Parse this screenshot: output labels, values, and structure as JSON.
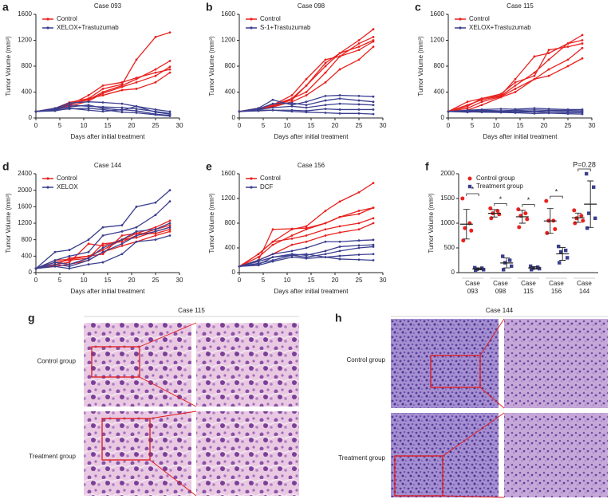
{
  "chart_data": [
    {
      "type": "line",
      "panel": "a",
      "title": "Case 093",
      "xlabel": "Days after initial treatment",
      "ylabel": "Tumor Volume (mm³)",
      "x": [
        0,
        4,
        7,
        11,
        14,
        18,
        21,
        25,
        28
      ],
      "xlim": [
        0,
        30
      ],
      "xticks": [
        0,
        5,
        10,
        15,
        20,
        25,
        30
      ],
      "ylim": [
        0,
        1600
      ],
      "yticks": [
        0,
        400,
        800,
        1200,
        1600
      ],
      "series": [
        {
          "name": "Control",
          "color": "#e8221f",
          "lines": [
            [
              100,
              150,
              200,
              300,
              450,
              520,
              900,
              1250,
              1320
            ],
            [
              100,
              140,
              220,
              280,
              400,
              500,
              600,
              750,
              880
            ],
            [
              100,
              130,
              180,
              260,
              380,
              480,
              550,
              650,
              790
            ],
            [
              100,
              120,
              200,
              350,
              500,
              550,
              620,
              700,
              750
            ],
            [
              100,
              150,
              240,
              300,
              350,
              430,
              450,
              550,
              700
            ]
          ]
        },
        {
          "name": "XELOX+Trastuzumab",
          "color": "#3b3f8f",
          "lines": [
            [
              100,
              150,
              230,
              250,
              240,
              220,
              180,
              130,
              100
            ],
            [
              100,
              140,
              200,
              180,
              170,
              160,
              140,
              100,
              70
            ],
            [
              100,
              130,
              170,
              200,
              150,
              120,
              180,
              90,
              60
            ],
            [
              100,
              110,
              150,
              120,
              100,
              130,
              110,
              60,
              40
            ],
            [
              100,
              120,
              140,
              150,
              130,
              90,
              80,
              50,
              30
            ]
          ]
        }
      ]
    },
    {
      "type": "line",
      "panel": "b",
      "title": "Case 098",
      "xlabel": "Days after initial treatment",
      "ylabel": "Tumor Volume (mm³)",
      "x": [
        0,
        4,
        7,
        11,
        14,
        18,
        21,
        25,
        28
      ],
      "xlim": [
        0,
        30
      ],
      "xticks": [
        0,
        5,
        10,
        15,
        20,
        25,
        30
      ],
      "ylim": [
        0,
        1600
      ],
      "yticks": [
        0,
        400,
        800,
        1200,
        1600
      ],
      "series": [
        {
          "name": "Control",
          "color": "#e8221f",
          "lines": [
            [
              100,
              150,
              180,
              300,
              500,
              850,
              1000,
              1200,
              1370
            ],
            [
              100,
              140,
              200,
              350,
              600,
              900,
              950,
              1150,
              1250
            ],
            [
              100,
              130,
              180,
              280,
              500,
              800,
              1000,
              1100,
              1200
            ],
            [
              100,
              120,
              200,
              300,
              400,
              700,
              950,
              1050,
              1180
            ],
            [
              100,
              150,
              170,
              250,
              350,
              550,
              750,
              900,
              1100
            ]
          ]
        },
        {
          "name": "S-1+Trastuzumab",
          "color": "#3b3f8f",
          "lines": [
            [
              100,
              150,
              280,
              200,
              250,
              340,
              350,
              340,
              330
            ],
            [
              100,
              140,
              220,
              230,
              200,
              270,
              300,
              270,
              250
            ],
            [
              100,
              130,
              160,
              180,
              160,
              200,
              220,
              210,
              200
            ],
            [
              100,
              110,
              120,
              120,
              110,
              140,
              130,
              130,
              130
            ],
            [
              100,
              120,
              120,
              100,
              90,
              80,
              70,
              70,
              60
            ]
          ]
        }
      ]
    },
    {
      "type": "line",
      "panel": "c",
      "title": "Case 115",
      "xlabel": "Days after initial treatment",
      "ylabel": "Tumor Volume (mm³)",
      "x": [
        0,
        4,
        7,
        11,
        14,
        18,
        21,
        25,
        28
      ],
      "xlim": [
        0,
        30
      ],
      "xticks": [
        0,
        5,
        10,
        15,
        20,
        25,
        30
      ],
      "ylim": [
        0,
        1600
      ],
      "yticks": [
        0,
        400,
        800,
        1200,
        1600
      ],
      "series": [
        {
          "name": "Control",
          "color": "#e8221f",
          "lines": [
            [
              100,
              250,
              300,
              350,
              600,
              950,
              1000,
              1150,
              1280
            ],
            [
              100,
              200,
              280,
              340,
              500,
              700,
              900,
              1150,
              1200
            ],
            [
              100,
              180,
              300,
              370,
              550,
              650,
              1050,
              1100,
              1150
            ],
            [
              100,
              150,
              250,
              330,
              450,
              600,
              750,
              900,
              1080
            ],
            [
              100,
              120,
              200,
              320,
              400,
              600,
              650,
              800,
              920
            ]
          ]
        },
        {
          "name": "XELOX+Trastuzumab",
          "color": "#3b3f8f",
          "lines": [
            [
              100,
              120,
              130,
              140,
              135,
              150,
              140,
              130,
              130
            ],
            [
              100,
              110,
              120,
              110,
              120,
              125,
              120,
              115,
              110
            ],
            [
              100,
              100,
              110,
              100,
              110,
              100,
              110,
              100,
              100
            ],
            [
              100,
              90,
              100,
              95,
              90,
              95,
              85,
              80,
              80
            ],
            [
              100,
              95,
              90,
              85,
              80,
              70,
              75,
              65,
              60
            ]
          ]
        }
      ]
    },
    {
      "type": "line",
      "panel": "d",
      "title": "Case 144",
      "xlabel": "Days after initial treatment",
      "ylabel": "Tumor Volume (mm³)",
      "x": [
        0,
        4,
        7,
        11,
        14,
        18,
        21,
        25,
        28
      ],
      "xlim": [
        0,
        30
      ],
      "xticks": [
        0,
        5,
        10,
        15,
        20,
        25,
        30
      ],
      "ylim": [
        0,
        2400
      ],
      "yticks": [
        0,
        400,
        800,
        1200,
        1600,
        2000,
        2400
      ],
      "series": [
        {
          "name": "Control",
          "color": "#e8221f",
          "lines": [
            [
              100,
              300,
              320,
              400,
              450,
              900,
              950,
              1100,
              1260
            ],
            [
              100,
              250,
              300,
              350,
              700,
              750,
              900,
              1050,
              1150
            ],
            [
              100,
              200,
              250,
              700,
              650,
              800,
              850,
              1000,
              1100
            ],
            [
              100,
              180,
              350,
              400,
              550,
              800,
              950,
              950,
              1050
            ],
            [
              100,
              150,
              200,
              300,
              500,
              650,
              750,
              900,
              1000
            ]
          ]
        },
        {
          "name": "XELOX",
          "color": "#3b3f8f",
          "lines": [
            [
              100,
              500,
              550,
              800,
              1100,
              1150,
              1600,
              1700,
              2000
            ],
            [
              100,
              300,
              400,
              500,
              900,
              1000,
              1100,
              1400,
              1730
            ],
            [
              100,
              250,
              200,
              350,
              600,
              800,
              1000,
              1050,
              1200
            ],
            [
              100,
              200,
              150,
              300,
              500,
              700,
              900,
              1000,
              1100
            ],
            [
              100,
              150,
              100,
              200,
              250,
              450,
              750,
              800,
              900
            ]
          ]
        }
      ]
    },
    {
      "type": "line",
      "panel": "e",
      "title": "Case 156",
      "xlabel": "Days after initial treatment",
      "ylabel": "Tumor Volume (mm³)",
      "x": [
        0,
        4,
        7,
        11,
        14,
        18,
        21,
        25,
        28
      ],
      "xlim": [
        0,
        30
      ],
      "xticks": [
        0,
        5,
        10,
        15,
        20,
        25,
        30
      ],
      "ylim": [
        0,
        1600
      ],
      "yticks": [
        0,
        400,
        800,
        1200,
        1600
      ],
      "series": [
        {
          "name": "Control",
          "color": "#e8221f",
          "lines": [
            [
              100,
              300,
              500,
              700,
              750,
              1000,
              1150,
              1300,
              1450
            ],
            [
              100,
              250,
              450,
              600,
              700,
              800,
              900,
              950,
              1050
            ],
            [
              100,
              200,
              700,
              710,
              720,
              800,
              900,
              1000,
              1050
            ],
            [
              100,
              300,
              500,
              550,
              600,
              700,
              750,
              800,
              880
            ],
            [
              100,
              200,
              300,
              450,
              500,
              600,
              650,
              700,
              800
            ]
          ]
        },
        {
          "name": "DCF",
          "color": "#3b3f8f",
          "lines": [
            [
              100,
              200,
              300,
              350,
              400,
              500,
              500,
              520,
              530
            ],
            [
              100,
              180,
              250,
              300,
              280,
              350,
              420,
              440,
              450
            ],
            [
              100,
              150,
              200,
              280,
              250,
              300,
              350,
              400,
              420
            ],
            [
              100,
              120,
              180,
              250,
              230,
              250,
              270,
              290,
              300
            ],
            [
              100,
              130,
              250,
              280,
              300,
              250,
              220,
              210,
              200
            ]
          ]
        }
      ]
    },
    {
      "type": "dot",
      "panel": "f",
      "ylabel": "Tumor Volume (mm³)",
      "ylim": [
        0,
        2000
      ],
      "yticks": [
        0,
        500,
        1000,
        1500,
        2000
      ],
      "categories": [
        [
          "Case",
          "093"
        ],
        [
          "Case",
          "098"
        ],
        [
          "Case",
          "115"
        ],
        [
          "Case",
          "156"
        ],
        [
          "Case",
          "144"
        ]
      ],
      "annotations": [
        "*",
        "*",
        "*",
        "*",
        "P=0.28"
      ],
      "series": [
        {
          "name": "Control group",
          "color": "#e8221f",
          "marker": "circle",
          "values": [
            [
              1500,
              1000,
              900,
              850,
              650
            ],
            [
              1300,
              1250,
              1200,
              1180,
              1100
            ],
            [
              1280,
              1200,
              1150,
              1080,
              920
            ],
            [
              1450,
              1050,
              1050,
              880,
              800
            ],
            [
              1260,
              1150,
              1100,
              1050,
              1000
            ]
          ],
          "means": [
            980,
            1200,
            1130,
            1045,
            1110
          ],
          "sds": [
            300,
            75,
            130,
            250,
            95
          ]
        },
        {
          "name": "Treatment group",
          "color": "#3b3f8f",
          "marker": "square",
          "values": [
            [
              100,
              90,
              70,
              60,
              50
            ],
            [
              330,
              250,
              200,
              130,
              60
            ],
            [
              130,
              110,
              90,
              80,
              60
            ],
            [
              530,
              450,
              420,
              300,
              200
            ],
            [
              2000,
              1730,
              1200,
              1100,
              900
            ]
          ],
          "means": [
            75,
            195,
            95,
            380,
            1385
          ],
          "sds": [
            20,
            100,
            25,
            130,
            470
          ]
        }
      ]
    }
  ],
  "images": [
    {
      "panel": "g",
      "title": "Case 115",
      "rows": [
        "Control group",
        "Treatment group"
      ]
    },
    {
      "panel": "h",
      "title": "Case 144",
      "rows": [
        "Control group",
        "Treatment group"
      ]
    }
  ]
}
